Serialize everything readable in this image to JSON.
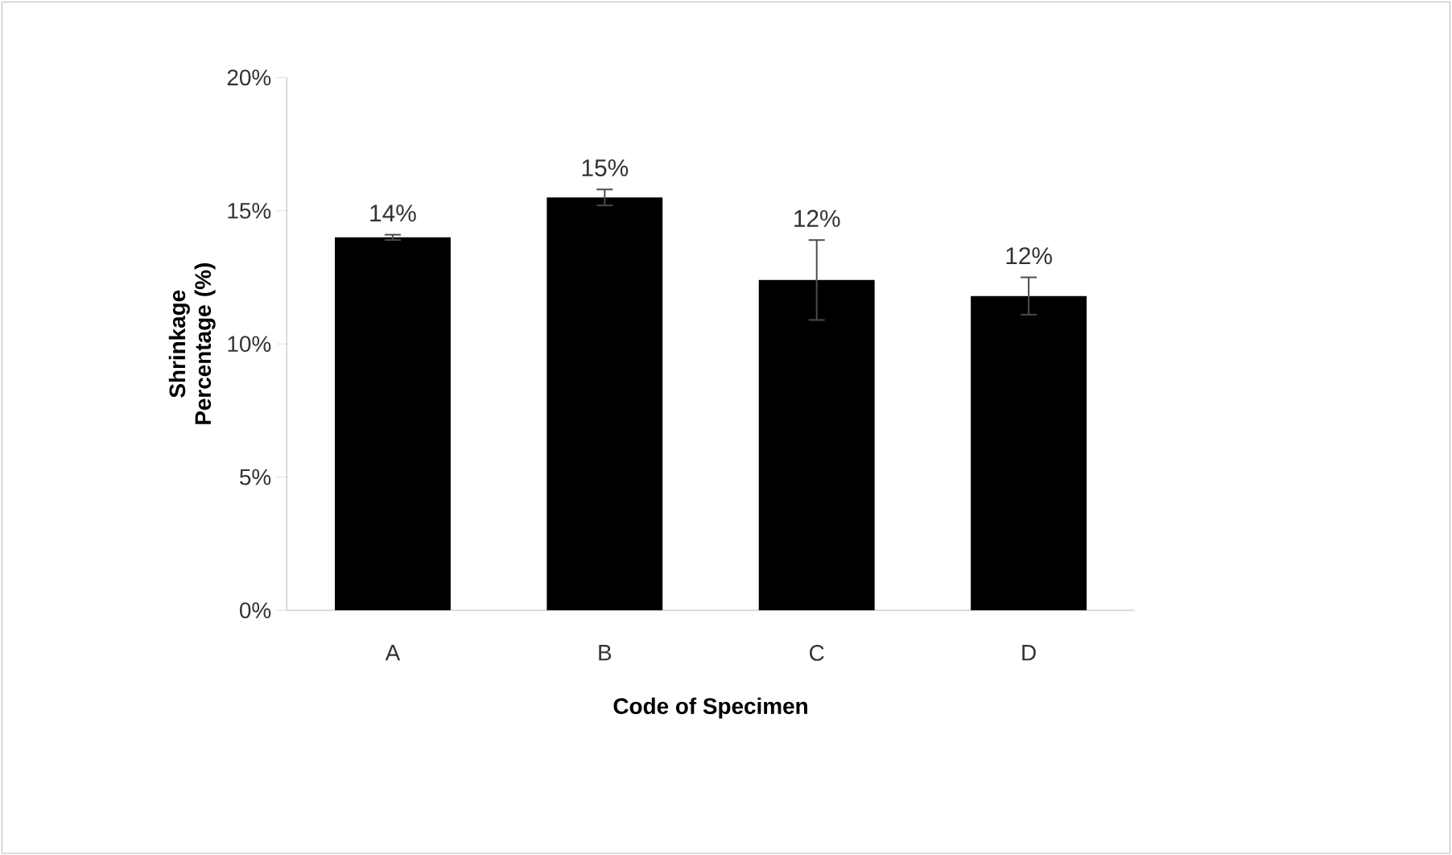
{
  "chart_data": {
    "type": "bar",
    "xlabel": "Code of Specimen",
    "ylabel": "Shrinkage Percentage (%)",
    "categories": [
      "A",
      "B",
      "C",
      "D"
    ],
    "values": [
      14.0,
      15.5,
      12.4,
      11.8
    ],
    "errors": [
      0.1,
      0.3,
      1.5,
      0.7
    ],
    "value_labels": [
      "14%",
      "15%",
      "12%",
      "12%"
    ],
    "colors": [
      "#000000",
      "#000000",
      "#000000",
      "#000000"
    ],
    "ylim": [
      0,
      20
    ],
    "yticks": [
      {
        "value": 0,
        "label": "0%"
      },
      {
        "value": 5,
        "label": "5%"
      },
      {
        "value": 10,
        "label": "10%"
      },
      {
        "value": 15,
        "label": "15%"
      },
      {
        "value": 20,
        "label": "20%"
      }
    ],
    "grid": false
  }
}
